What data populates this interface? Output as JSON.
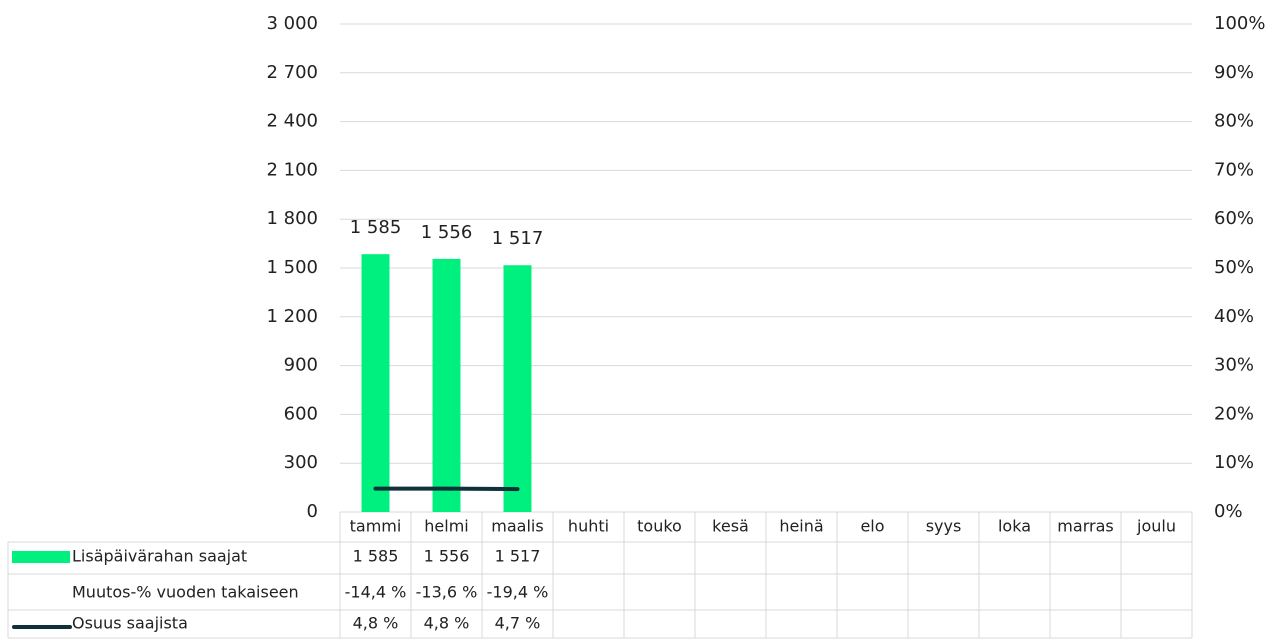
{
  "chart_data": {
    "type": "bar",
    "categories": [
      "tammi",
      "helmi",
      "maalis",
      "huhti",
      "touko",
      "kesä",
      "heinä",
      "elo",
      "syys",
      "loka",
      "marras",
      "joulu"
    ],
    "series": [
      {
        "name": "Lisäpäivärahan saajat",
        "type": "bar",
        "color": "#00f07f",
        "values": [
          1585,
          1556,
          1517,
          null,
          null,
          null,
          null,
          null,
          null,
          null,
          null,
          null
        ],
        "value_labels": [
          "1 585",
          "1 556",
          "1 517",
          null,
          null,
          null,
          null,
          null,
          null,
          null,
          null,
          null
        ]
      },
      {
        "name": "Osuus saajista",
        "type": "line",
        "axis": "y2",
        "color": "#10303a",
        "values": [
          4.8,
          4.8,
          4.7,
          null,
          null,
          null,
          null,
          null,
          null,
          null,
          null,
          null
        ],
        "value_labels": [
          "4,8 %",
          "4,8 %",
          "4,7 %",
          null,
          null,
          null,
          null,
          null,
          null,
          null,
          null,
          null
        ]
      }
    ],
    "table_rows": [
      {
        "name": "Muutos-% vuoden takaiseen",
        "values": [
          -14.4,
          -13.6,
          -19.4,
          null,
          null,
          null,
          null,
          null,
          null,
          null,
          null,
          null
        ],
        "value_labels": [
          "-14,4 %",
          "-13,6 %",
          "-19,4 %",
          null,
          null,
          null,
          null,
          null,
          null,
          null,
          null,
          null
        ]
      }
    ],
    "ylim": [
      0,
      3000
    ],
    "yticks": [
      0,
      300,
      600,
      900,
      {
        "value": 1200,
        "label": "1 200"
      },
      {
        "value": 1500,
        "label": "1 500"
      },
      {
        "value": 1800,
        "label": "1 800"
      },
      {
        "value": 2100,
        "label": "2 100"
      },
      {
        "value": 2400,
        "label": "2 400"
      },
      {
        "value": 2700,
        "label": "2 700"
      },
      {
        "value": 3000,
        "label": "3 000"
      }
    ],
    "y2lim": [
      0,
      100
    ],
    "y2ticks": [
      {
        "value": 0,
        "label": "0%"
      },
      {
        "value": 10,
        "label": "10%"
      },
      {
        "value": 20,
        "label": "20%"
      },
      {
        "value": 30,
        "label": "30%"
      },
      {
        "value": 40,
        "label": "40%"
      },
      {
        "value": 50,
        "label": "50%"
      },
      {
        "value": 60,
        "label": "60%"
      },
      {
        "value": 70,
        "label": "70%"
      },
      {
        "value": 80,
        "label": "80%"
      },
      {
        "value": 90,
        "label": "90%"
      },
      {
        "value": 100,
        "label": "100%"
      }
    ],
    "grid": true
  }
}
